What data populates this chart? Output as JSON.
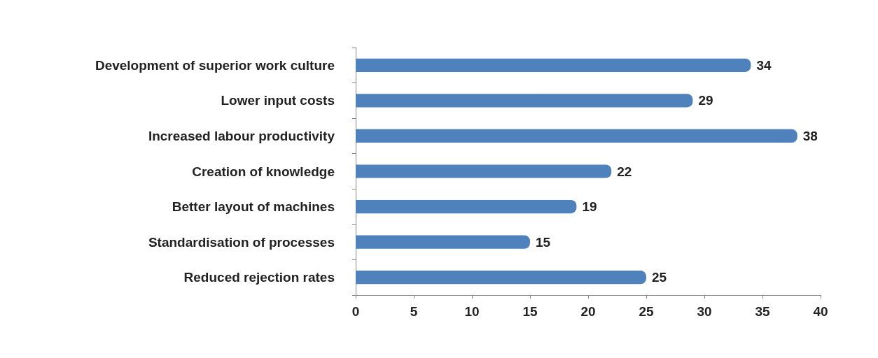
{
  "chart_data": {
    "type": "bar",
    "orientation": "horizontal",
    "categories": [
      "Development of superior work culture",
      "Lower input costs",
      "Increased labour productivity",
      "Creation of knowledge",
      "Better layout of machines",
      "Standardisation of processes",
      "Reduced rejection rates"
    ],
    "values": [
      34,
      29,
      38,
      22,
      19,
      15,
      25
    ],
    "color": "#4f81bd",
    "xlim": [
      0,
      40
    ],
    "xticks": [
      0,
      5,
      10,
      15,
      20,
      25,
      30,
      35,
      40
    ],
    "data_labels": true,
    "grid": false
  }
}
